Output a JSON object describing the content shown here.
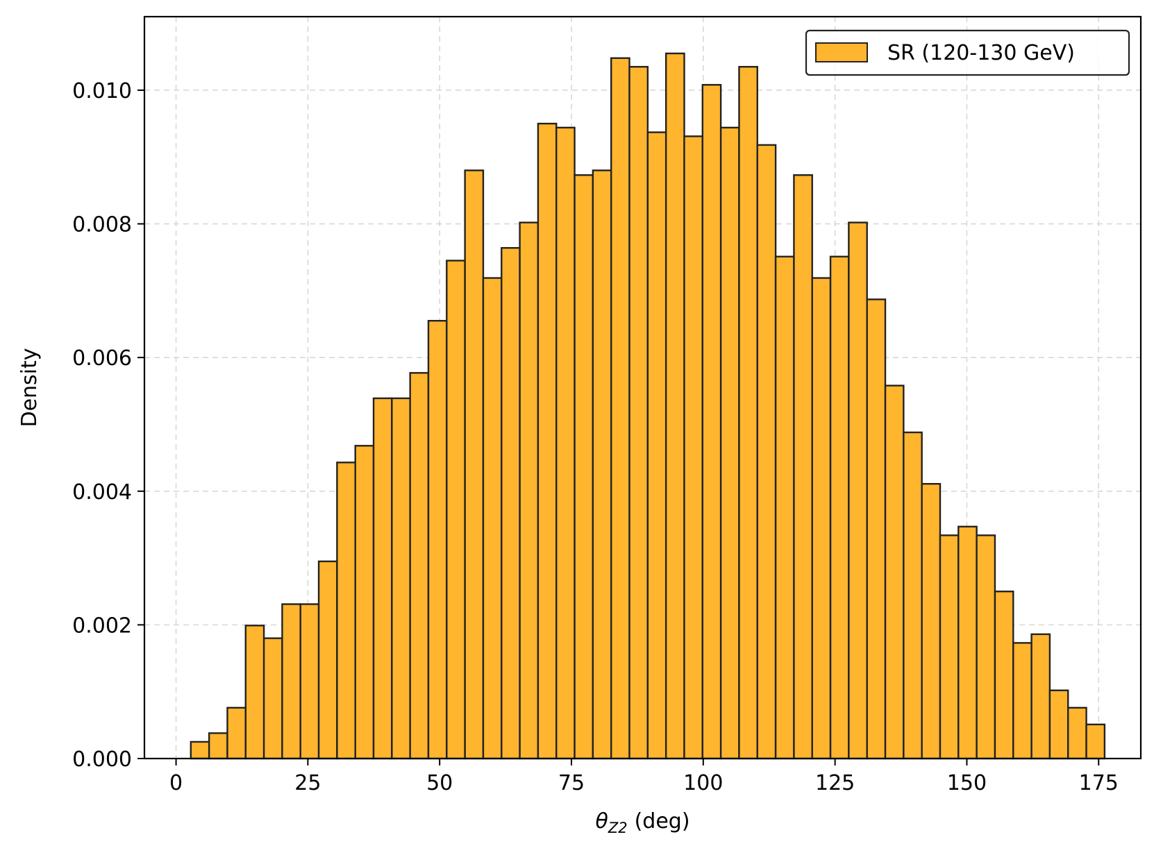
{
  "chart_data": {
    "type": "bar",
    "title": "",
    "xlabel": "(deg)",
    "xlabel_symbol": "θ",
    "xlabel_subscript": "Z2",
    "ylabel": "Density",
    "xlim": [
      -6,
      183
    ],
    "ylim": [
      0,
      0.0111
    ],
    "x_ticks": [
      0,
      25,
      50,
      75,
      100,
      125,
      150,
      175
    ],
    "x_tick_labels": [
      "0",
      "25",
      "50",
      "75",
      "100",
      "125",
      "150",
      "175"
    ],
    "y_ticks": [
      0,
      0.002,
      0.004,
      0.006,
      0.008,
      0.01
    ],
    "y_tick_labels": [
      "0.000",
      "0.002",
      "0.004",
      "0.006",
      "0.008",
      "0.010"
    ],
    "grid": true,
    "legend_position": "upper right",
    "bin_start": 2.8,
    "bin_width": 3.4667,
    "series": [
      {
        "name": "SR (120-130 GeV)",
        "color": "#FFB52E",
        "edge_color": "#222222",
        "values": [
          0.00025,
          0.00038,
          0.00076,
          0.00199,
          0.0018,
          0.00231,
          0.00231,
          0.00295,
          0.00443,
          0.00468,
          0.00539,
          0.00539,
          0.00577,
          0.00655,
          0.00745,
          0.0088,
          0.00719,
          0.00764,
          0.00802,
          0.0095,
          0.00944,
          0.00873,
          0.0088,
          0.01048,
          0.01035,
          0.00937,
          0.01055,
          0.00931,
          0.01008,
          0.00944,
          0.01035,
          0.00918,
          0.00751,
          0.00873,
          0.00719,
          0.00751,
          0.00802,
          0.00687,
          0.00558,
          0.00488,
          0.00411,
          0.00334,
          0.00347,
          0.00334,
          0.0025,
          0.00173,
          0.00186,
          0.00102,
          0.00076,
          0.00051
        ]
      }
    ]
  }
}
